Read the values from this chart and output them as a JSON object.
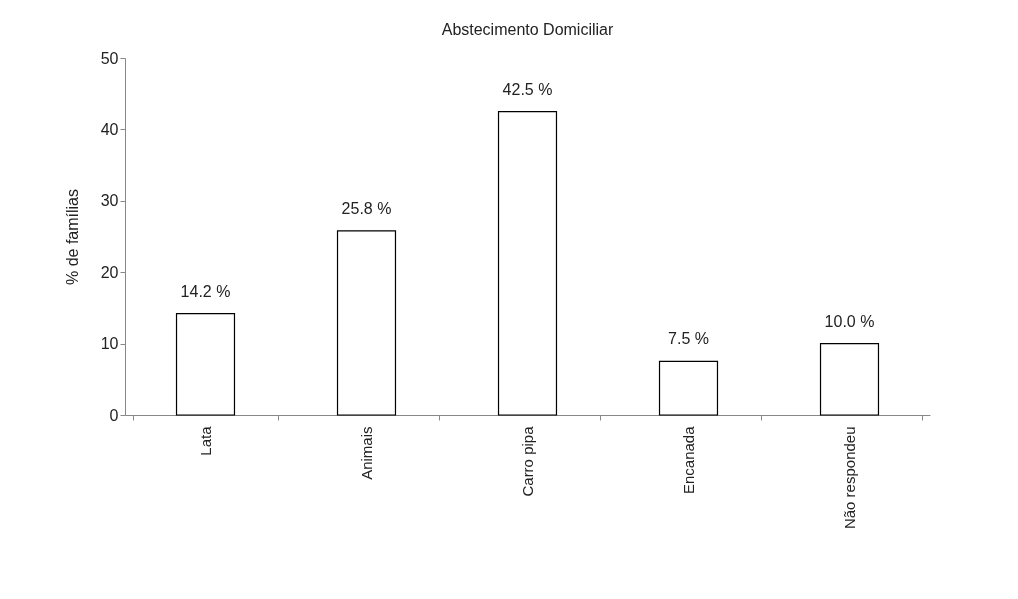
{
  "chart_data": {
    "type": "bar",
    "title": "Abstecimento Domiciliar",
    "ylabel": "% de famílias",
    "categories": [
      "Lata",
      "Animais",
      "Carro pipa",
      "Encanada",
      "Não respondeu"
    ],
    "values": [
      14.2,
      25.8,
      42.5,
      7.5,
      10.0
    ],
    "value_labels": [
      "14.2 %",
      "25.8 %",
      "42.5 %",
      "7.5 %",
      "10.0 %"
    ],
    "color": "#ffffff",
    "ylim": [
      0,
      50
    ],
    "yticks": [
      0,
      10,
      20,
      30,
      40,
      50
    ],
    "grid": false
  }
}
